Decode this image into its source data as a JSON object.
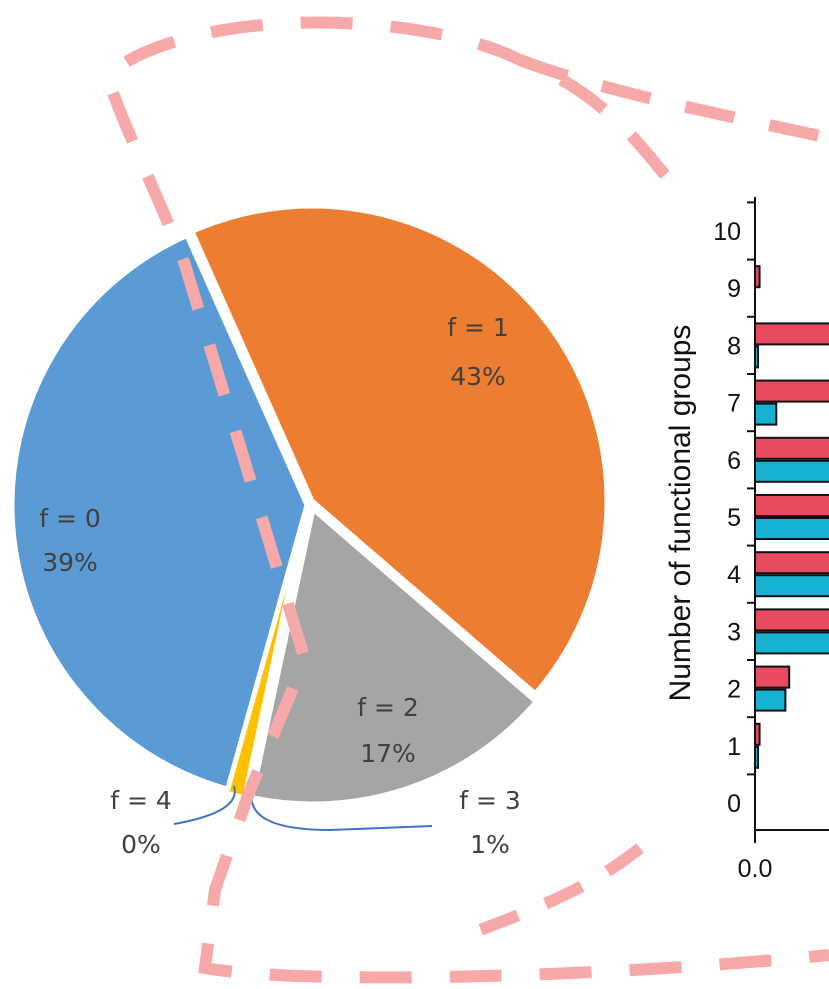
{
  "chart_data": [
    {
      "type": "pie",
      "slices": [
        {
          "label": "f = 0",
          "value_text": "39%",
          "value": 39,
          "color": "#5B9BD5"
        },
        {
          "label": "f = 1",
          "value_text": "43%",
          "value": 43,
          "color": "#ED7D31"
        },
        {
          "label": "f = 2",
          "value_text": "17%",
          "value": 17,
          "color": "#A5A5A5"
        },
        {
          "label": "f = 3",
          "value_text": "1%",
          "value": 1,
          "color": "#FFC000"
        },
        {
          "label": "f = 4",
          "value_text": "0%",
          "value": 0,
          "color": "#4472C4"
        }
      ]
    },
    {
      "type": "bar",
      "orientation": "horizontal",
      "ylabel": "Number of functional groups",
      "categories": [
        "0",
        "1",
        "2",
        "3",
        "4",
        "5",
        "6",
        "7",
        "8",
        "9",
        "10"
      ],
      "xtick_labels": [
        "0.0"
      ],
      "xlim_visible": [
        0,
        0.1
      ],
      "series": [
        {
          "color": "#E84A5F",
          "values": [
            0,
            0.006,
            0.045,
            0.5,
            0.5,
            0.5,
            0.5,
            0.5,
            0.5,
            0.006,
            0
          ]
        },
        {
          "color": "#17B1D1",
          "values": [
            0,
            0.004,
            0.04,
            0.5,
            0.5,
            0.5,
            0.5,
            0.028,
            0.003,
            0,
            0
          ]
        }
      ]
    }
  ],
  "overlay": {
    "color": "#F7A8A8"
  }
}
